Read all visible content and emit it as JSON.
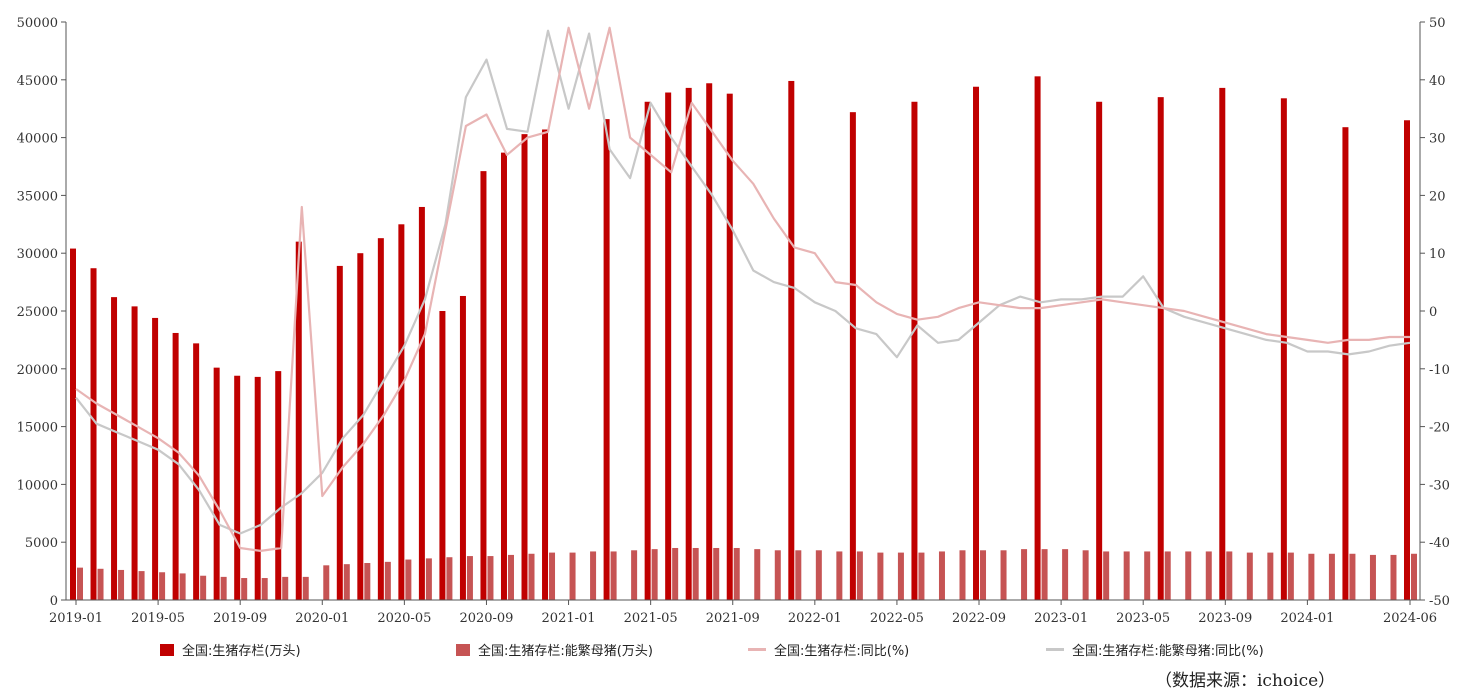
{
  "chart_data": {
    "type": "bar",
    "x": [
      "2019-01",
      "2019-02",
      "2019-03",
      "2019-04",
      "2019-05",
      "2019-06",
      "2019-07",
      "2019-08",
      "2019-09",
      "2019-10",
      "2019-11",
      "2019-12",
      "2020-01",
      "2020-02",
      "2020-03",
      "2020-04",
      "2020-05",
      "2020-06",
      "2020-07",
      "2020-08",
      "2020-09",
      "2020-10",
      "2020-11",
      "2020-12",
      "2021-01",
      "2021-02",
      "2021-03",
      "2021-04",
      "2021-05",
      "2021-06",
      "2021-07",
      "2021-08",
      "2021-09",
      "2021-10",
      "2021-11",
      "2021-12",
      "2022-01",
      "2022-02",
      "2022-03",
      "2022-04",
      "2022-05",
      "2022-06",
      "2022-07",
      "2022-08",
      "2022-09",
      "2022-10",
      "2022-11",
      "2022-12",
      "2023-01",
      "2023-02",
      "2023-03",
      "2023-04",
      "2023-05",
      "2023-06",
      "2023-07",
      "2023-08",
      "2023-09",
      "2023-10",
      "2023-11",
      "2023-12",
      "2024-01",
      "2024-02",
      "2024-03",
      "2024-04",
      "2024-05",
      "2024-06"
    ],
    "x_tick_labels": [
      "2019-01",
      "2019-05",
      "2019-09",
      "2020-01",
      "2020-05",
      "2020-09",
      "2021-01",
      "2021-05",
      "2021-09",
      "2022-01",
      "2022-05",
      "2022-09",
      "2023-01",
      "2023-05",
      "2023-09",
      "2024-01",
      "2024-06"
    ],
    "y_left": {
      "min": 0,
      "max": 50000,
      "ticks": [
        0,
        5000,
        10000,
        15000,
        20000,
        25000,
        30000,
        35000,
        40000,
        45000,
        50000
      ]
    },
    "y_right": {
      "min": -50,
      "max": 50,
      "ticks": [
        -50,
        -40,
        -30,
        -20,
        -10,
        0,
        10,
        20,
        30,
        40,
        50
      ]
    },
    "grid": false,
    "legend_position": "bottom",
    "series": [
      {
        "name": "全国:生猪存栏(万头)",
        "kind": "bar",
        "axis": "left",
        "color": "#C00000",
        "values": [
          30400,
          28700,
          26200,
          25400,
          24400,
          23100,
          22200,
          20100,
          19400,
          19300,
          19800,
          31000,
          null,
          28900,
          30000,
          31300,
          32500,
          34000,
          25000,
          26300,
          37100,
          38700,
          40300,
          40700,
          null,
          null,
          41600,
          null,
          43100,
          43900,
          44300,
          44700,
          43800,
          null,
          null,
          44900,
          null,
          null,
          42200,
          null,
          null,
          43100,
          null,
          null,
          44400,
          null,
          null,
          45300,
          null,
          null,
          43100,
          null,
          null,
          43500,
          null,
          null,
          44300,
          null,
          null,
          43400,
          null,
          null,
          40900,
          null,
          null,
          41500
        ]
      },
      {
        "name": "全国:生猪存栏:能繁母猪(万头)",
        "kind": "bar",
        "axis": "left",
        "color": "#C65454",
        "values": [
          2800,
          2700,
          2600,
          2500,
          2400,
          2300,
          2100,
          2000,
          1900,
          1900,
          2000,
          2000,
          3000,
          3100,
          3200,
          3300,
          3500,
          3600,
          3700,
          3800,
          3800,
          3900,
          4000,
          4100,
          4100,
          4200,
          4200,
          4300,
          4400,
          4500,
          4500,
          4500,
          4500,
          4400,
          4300,
          4300,
          4300,
          4200,
          4200,
          4100,
          4100,
          4100,
          4200,
          4300,
          4300,
          4300,
          4400,
          4400,
          4400,
          4300,
          4200,
          4200,
          4200,
          4200,
          4200,
          4200,
          4200,
          4100,
          4100,
          4100,
          4000,
          4000,
          4000,
          3900,
          3900,
          4000
        ]
      },
      {
        "name": "全国:生猪存栏:同比(%)",
        "kind": "line",
        "axis": "right",
        "color": "#E8B4B4",
        "values": [
          -13.5,
          -16,
          -18,
          -20,
          -22,
          -24.5,
          -28.5,
          -34.5,
          -41,
          -41.5,
          -41,
          18,
          -32,
          -27,
          -23,
          -18,
          -12,
          -4,
          14,
          32,
          34,
          27,
          30,
          31,
          49,
          35,
          49,
          30,
          27,
          24,
          36,
          31,
          26,
          22,
          16,
          11,
          10,
          5,
          4.5,
          1.5,
          -0.5,
          -1.5,
          -1,
          0.5,
          1.5,
          1,
          0.5,
          0.5,
          1,
          1.5,
          2,
          1.5,
          1,
          0.5,
          0,
          -1,
          -2,
          -3,
          -4,
          -4.5,
          -5,
          -5.5,
          -5,
          -5,
          -4.5,
          -4.5
        ]
      },
      {
        "name": "全国:生猪存栏:能繁母猪:同比(%)",
        "kind": "line",
        "axis": "right",
        "color": "#C8C8C8",
        "values": [
          -15,
          -19.5,
          -21,
          -22.5,
          -24,
          -26.5,
          -31,
          -37,
          -38.5,
          -37,
          -34,
          -31.5,
          -28,
          -22,
          -18,
          -12,
          -6,
          2,
          15,
          37,
          43.5,
          31.5,
          31,
          48.5,
          35,
          48,
          28,
          23,
          36,
          30,
          25,
          20,
          14,
          7,
          5,
          4,
          1.5,
          0,
          -3,
          -4,
          -8,
          -2.5,
          -5.5,
          -5,
          -2,
          1,
          2.5,
          1.5,
          2,
          2,
          2.5,
          2.5,
          6,
          0.5,
          -1,
          -2,
          -3,
          -4,
          -5,
          -5.5,
          -7,
          -7,
          -7.5,
          -7,
          -6,
          -5.5
        ]
      }
    ],
    "source_note": "（数据来源：ichoice）"
  }
}
